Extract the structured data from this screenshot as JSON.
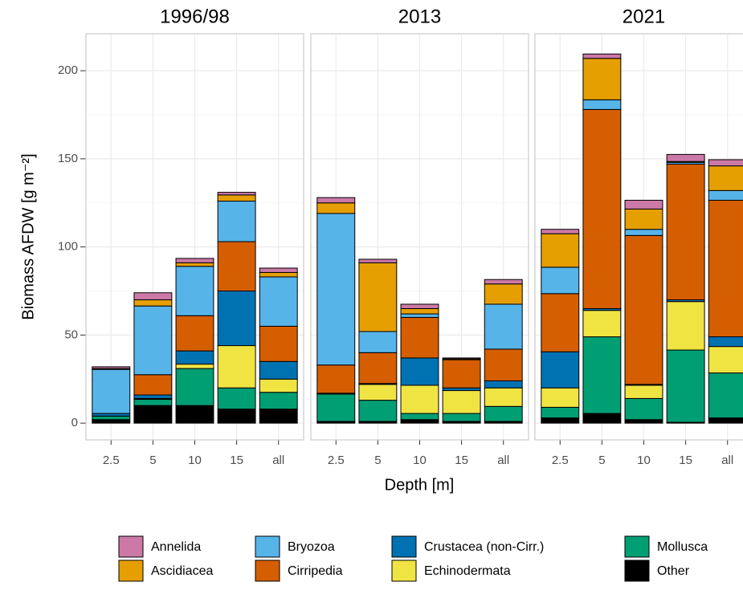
{
  "chart_data": {
    "type": "bar",
    "stacked": true,
    "ylabel": "Biomass AFDW [g m⁻²]",
    "xlabel": "Depth [m]",
    "facets": [
      "1996/98",
      "2013",
      "2021"
    ],
    "categories": [
      "2.5",
      "5",
      "10",
      "15",
      "all"
    ],
    "ylim": [
      -9.5,
      221
    ],
    "yticks": [
      0,
      50,
      100,
      150,
      200
    ],
    "grid": true,
    "series": [
      {
        "name": "Annelida",
        "color": "#CC79A7",
        "values": [
          [
            1,
            4,
            2.5,
            1.5,
            2.5
          ],
          [
            3,
            2,
            2.5,
            0.5,
            2.5
          ],
          [
            2.5,
            2.5,
            5,
            4,
            3.5
          ]
        ]
      },
      {
        "name": "Ascidiacea",
        "color": "#E69F00",
        "values": [
          [
            0.5,
            3.5,
            2,
            3.5,
            2.5
          ],
          [
            6,
            39,
            3,
            0.5,
            11.5
          ],
          [
            19,
            23.5,
            11.5,
            0.5,
            14
          ]
        ]
      },
      {
        "name": "Bryozoa",
        "color": "#56B4E9",
        "values": [
          [
            25,
            39,
            28,
            23,
            28
          ],
          [
            86,
            12,
            2,
            0,
            25.5
          ],
          [
            15,
            5.5,
            3.5,
            1,
            5.5
          ]
        ]
      },
      {
        "name": "Cirripedia",
        "color": "#D55E00",
        "values": [
          [
            0,
            11.5,
            20,
            28,
            20
          ],
          [
            16,
            17.5,
            23,
            16,
            18
          ],
          [
            33,
            113,
            84.5,
            77,
            77.5
          ]
        ]
      },
      {
        "name": "Crustacea (non-Cirr.)",
        "color": "#0072B2",
        "values": [
          [
            1.5,
            2,
            7.5,
            31,
            10
          ],
          [
            0,
            0.5,
            15.5,
            1.5,
            4
          ],
          [
            20.5,
            1,
            0.5,
            1,
            5.5
          ]
        ]
      },
      {
        "name": "Echinodermata",
        "color": "#F0E442",
        "values": [
          [
            0,
            0.5,
            2.5,
            24,
            7.5
          ],
          [
            0.5,
            9,
            16,
            13,
            10.5
          ],
          [
            11,
            15,
            7.5,
            27.5,
            15
          ]
        ]
      },
      {
        "name": "Mollusca",
        "color": "#009E73",
        "values": [
          [
            2,
            3.5,
            21,
            12,
            9.5
          ],
          [
            15.5,
            12,
            3.5,
            4.5,
            8.5
          ],
          [
            6,
            43.5,
            12,
            41,
            25.5
          ]
        ]
      },
      {
        "name": "Other",
        "color": "#000000",
        "values": [
          [
            2,
            10,
            10,
            8,
            8
          ],
          [
            1,
            1,
            2,
            1,
            1
          ],
          [
            3,
            5.5,
            2,
            0.5,
            3
          ]
        ]
      }
    ]
  }
}
